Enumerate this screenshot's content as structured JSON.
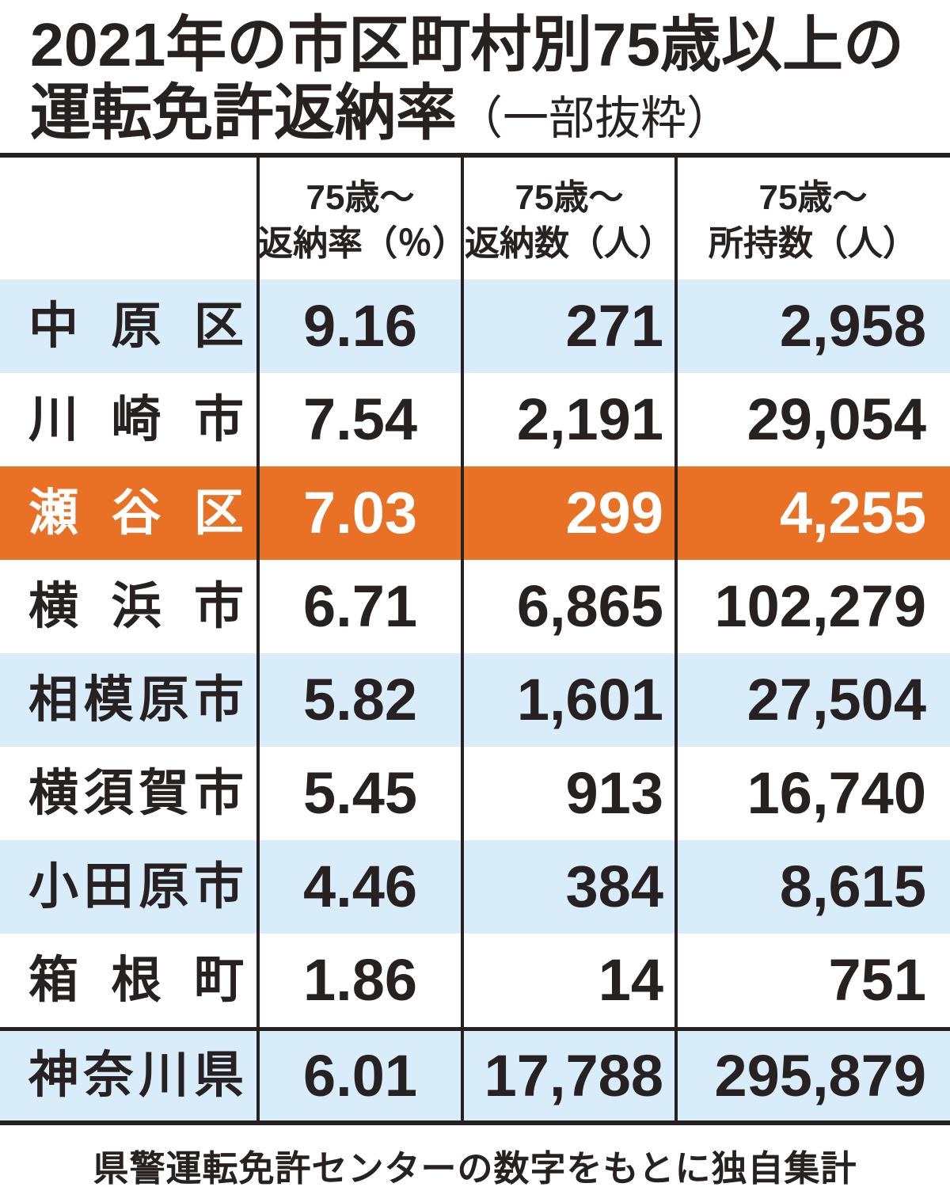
{
  "title": {
    "line1": "2021年の市区町村別75歳以上の",
    "line2_main": "運転免許返納率",
    "line2_sub": "（一部抜粋）"
  },
  "table": {
    "columns": [
      {
        "line1": "75歳～",
        "line2": "返納率（％）"
      },
      {
        "line1": "75歳～",
        "line2": "返納数（人）"
      },
      {
        "line1": "75歳～",
        "line2": "所持数（人）"
      }
    ],
    "rows": [
      {
        "name": "中原区",
        "rate": "9.16",
        "returns": "271",
        "holders": "2,958",
        "style": "blue"
      },
      {
        "name": "川崎市",
        "rate": "7.54",
        "returns": "2,191",
        "holders": "29,054",
        "style": "white"
      },
      {
        "name": "瀬谷区",
        "rate": "7.03",
        "returns": "299",
        "holders": "4,255",
        "style": "orange"
      },
      {
        "name": "横浜市",
        "rate": "6.71",
        "returns": "6,865",
        "holders": "102,279",
        "style": "white"
      },
      {
        "name": "相模原市",
        "rate": "5.82",
        "returns": "1,601",
        "holders": "27,504",
        "style": "blue"
      },
      {
        "name": "横須賀市",
        "rate": "5.45",
        "returns": "913",
        "holders": "16,740",
        "style": "white"
      },
      {
        "name": "小田原市",
        "rate": "4.46",
        "returns": "384",
        "holders": "8,615",
        "style": "blue"
      },
      {
        "name": "箱根町",
        "rate": "1.86",
        "returns": "14",
        "holders": "751",
        "style": "white"
      }
    ],
    "total_row": {
      "name": "神奈川県",
      "rate": "6.01",
      "returns": "17,788",
      "holders": "295,879"
    }
  },
  "footer": {
    "source": "県警運転免許センターの数字をもとに独自集計"
  },
  "colors": {
    "highlight_orange": "#e87125",
    "stripe_blue": "#d8ecf9",
    "ink": "#272122",
    "highlight_text": "#ffffff"
  },
  "chart_data": {
    "type": "table",
    "title": "2021年の市区町村別75歳以上の運転免許返納率（一部抜粋）",
    "columns": [
      "",
      "75歳～返納率（％）",
      "75歳～返納数（人）",
      "75歳～所持数（人）"
    ],
    "rows": [
      [
        "中原区",
        9.16,
        271,
        2958
      ],
      [
        "川崎市",
        7.54,
        2191,
        29054
      ],
      [
        "瀬谷区",
        7.03,
        299,
        4255
      ],
      [
        "横浜市",
        6.71,
        6865,
        102279
      ],
      [
        "相模原市",
        5.82,
        1601,
        27504
      ],
      [
        "横須賀市",
        5.45,
        913,
        16740
      ],
      [
        "小田原市",
        4.46,
        384,
        8615
      ],
      [
        "箱根町",
        1.86,
        14,
        751
      ],
      [
        "神奈川県",
        6.01,
        17788,
        295879
      ]
    ],
    "highlighted_row": "瀬谷区",
    "source": "県警運転免許センターの数字をもとに独自集計"
  }
}
